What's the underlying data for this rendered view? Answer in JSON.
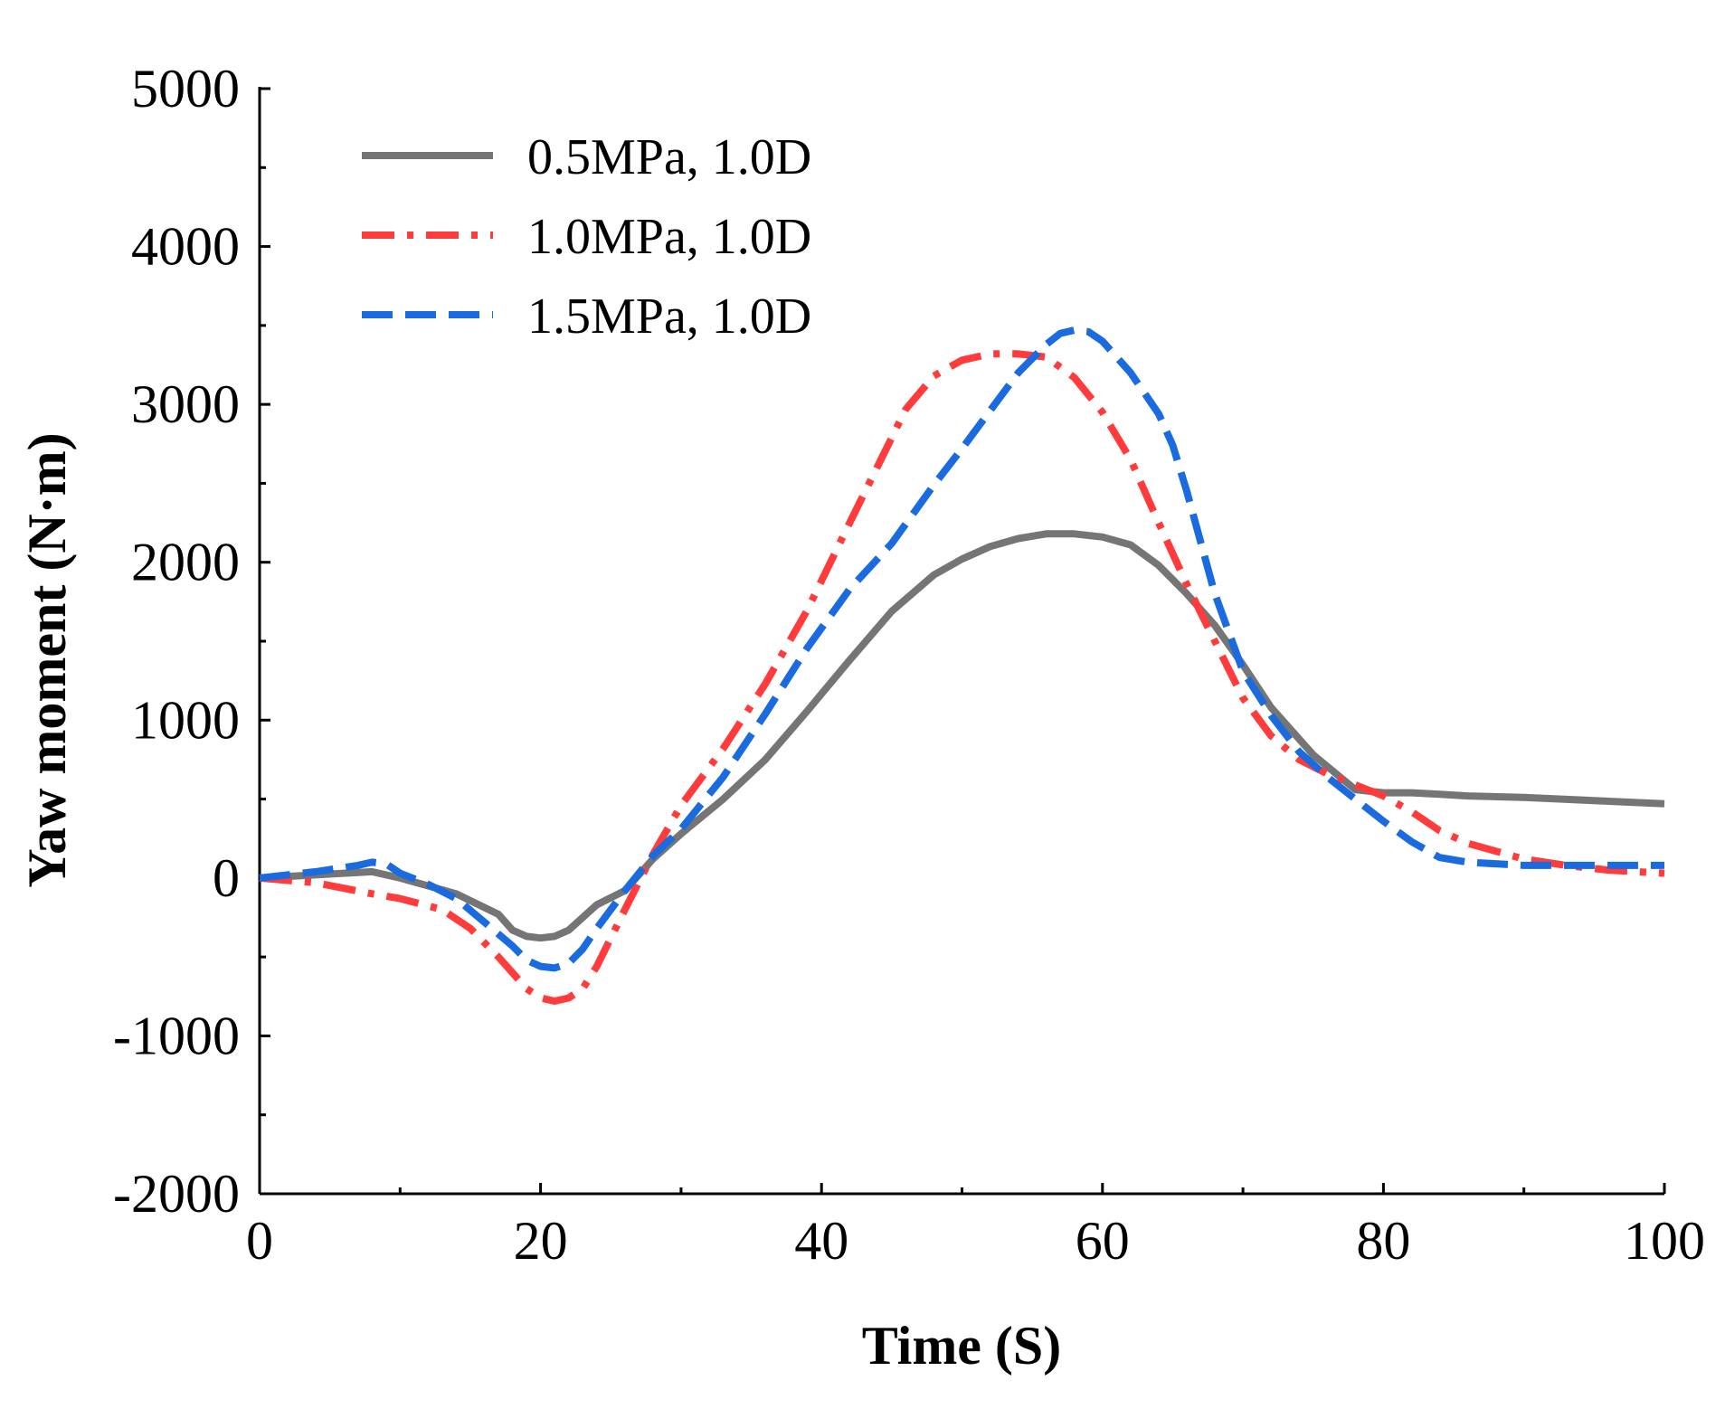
{
  "chart_data": {
    "type": "line",
    "title": "",
    "xlabel": "Time (S)",
    "ylabel": "Yaw moment (N·m)",
    "xlim": [
      0,
      100
    ],
    "ylim": [
      -2000,
      5000
    ],
    "xticks": [
      0,
      20,
      40,
      60,
      80,
      100
    ],
    "xtick_labels": [
      "0",
      "20",
      "40",
      "60",
      "80",
      "100"
    ],
    "yticks": [
      -2000,
      -1000,
      0,
      1000,
      2000,
      3000,
      4000,
      5000
    ],
    "ytick_labels": [
      "-2000",
      "-1000",
      "0",
      "1000",
      "2000",
      "3000",
      "4000",
      "5000"
    ],
    "grid": false,
    "legend_position": "top-left",
    "series": [
      {
        "name": "0.5MPa, 1.0D",
        "color": "#757575",
        "style": "solid",
        "x": [
          0,
          4,
          8,
          10,
          14,
          17,
          18,
          19,
          20,
          21,
          22,
          23,
          24,
          26,
          28,
          30,
          33,
          36,
          39,
          42,
          45,
          48,
          50,
          52,
          54,
          56,
          58,
          60,
          62,
          64,
          66,
          68,
          70,
          72,
          75,
          78,
          80,
          82,
          84,
          86,
          90,
          95,
          100
        ],
        "y": [
          0,
          20,
          40,
          0,
          -100,
          -230,
          -330,
          -370,
          -380,
          -370,
          -330,
          -250,
          -170,
          -80,
          120,
          280,
          500,
          750,
          1060,
          1380,
          1690,
          1920,
          2020,
          2100,
          2150,
          2180,
          2180,
          2160,
          2110,
          1980,
          1800,
          1600,
          1350,
          1080,
          780,
          560,
          540,
          540,
          530,
          520,
          510,
          490,
          470
        ]
      },
      {
        "name": "1.0MPa, 1.0D",
        "color": "#ff3b3b",
        "style": "dashdot",
        "x": [
          0,
          4,
          8,
          10,
          13,
          15,
          17,
          19,
          20,
          21,
          22,
          23,
          24,
          26,
          28,
          30,
          33,
          36,
          39,
          42,
          45,
          46,
          48,
          50,
          52,
          54,
          56,
          58,
          60,
          62,
          64,
          66,
          68,
          70,
          72,
          74,
          76,
          78,
          80,
          82,
          84,
          86,
          88,
          90,
          93,
          96,
          100
        ],
        "y": [
          0,
          -30,
          -100,
          -130,
          -200,
          -320,
          -500,
          -700,
          -760,
          -780,
          -760,
          -700,
          -560,
          -200,
          150,
          460,
          820,
          1230,
          1700,
          2250,
          2790,
          2970,
          3180,
          3280,
          3320,
          3320,
          3300,
          3170,
          2950,
          2650,
          2250,
          1860,
          1500,
          1140,
          900,
          750,
          660,
          590,
          520,
          420,
          300,
          220,
          170,
          120,
          80,
          50,
          30
        ]
      },
      {
        "name": "1.5MPa, 1.0D",
        "color": "#1a6ae0",
        "style": "dashed",
        "x": [
          0,
          4,
          7,
          8,
          9,
          10,
          12,
          14,
          16,
          18,
          19,
          20,
          21,
          22,
          23,
          24,
          26,
          28,
          30,
          33,
          36,
          39,
          42,
          45,
          48,
          50,
          52,
          54,
          56,
          57,
          58,
          59,
          60,
          62,
          64,
          65,
          66,
          68,
          70,
          72,
          74,
          76,
          78,
          80,
          82,
          84,
          86,
          90,
          95,
          100
        ],
        "y": [
          0,
          40,
          80,
          100,
          90,
          30,
          -40,
          -130,
          -280,
          -430,
          -520,
          -560,
          -570,
          -540,
          -450,
          -320,
          -80,
          140,
          310,
          640,
          1040,
          1460,
          1830,
          2120,
          2490,
          2720,
          2960,
          3200,
          3380,
          3450,
          3470,
          3460,
          3400,
          3200,
          2940,
          2740,
          2450,
          1800,
          1310,
          1030,
          800,
          640,
          500,
          360,
          230,
          130,
          100,
          80,
          80,
          80
        ]
      }
    ]
  }
}
